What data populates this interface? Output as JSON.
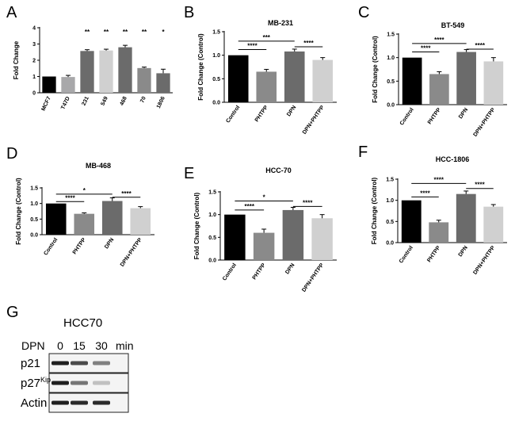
{
  "colors": {
    "black": "#000000",
    "dark_gray": "#6b6b6b",
    "mid_gray": "#8a8a8a",
    "light_gray": "#a8a8aa",
    "pale_gray": "#d0d0d0"
  },
  "chart_data": [
    {
      "letter": "A",
      "type": "bar",
      "title": "",
      "ylabel": "Fold Change",
      "ylim": [
        0,
        4
      ],
      "yticks": [
        "0",
        "1",
        "2",
        "3",
        "4"
      ],
      "categories": [
        "MCF7",
        "T47D",
        "231",
        "549",
        "468",
        "70",
        "1806"
      ],
      "values": [
        1.0,
        0.97,
        2.57,
        2.6,
        2.8,
        1.52,
        1.2
      ],
      "errors": [
        0,
        0.1,
        0.08,
        0.08,
        0.12,
        0.06,
        0.25
      ],
      "bar_colors": [
        "#000000",
        "#a8a8aa",
        "#6b6b6b",
        "#d0d0d0",
        "#6b6b6b",
        "#8a8a8a",
        "#6b6b6b"
      ],
      "markers": [
        "",
        "",
        "**",
        "**",
        "**",
        "**",
        "*"
      ],
      "comparisons": []
    },
    {
      "letter": "B",
      "type": "bar",
      "title": "MB-231",
      "ylabel": "Fold  Change (Control)",
      "ylim": [
        0,
        1.5
      ],
      "yticks": [
        "0.0",
        "0.5",
        "1.0",
        "1.5"
      ],
      "categories": [
        "Control",
        "PHTPP",
        "DPN",
        "DPN+PHTPP"
      ],
      "values": [
        1.0,
        0.65,
        1.08,
        0.9
      ],
      "errors": [
        0,
        0.05,
        0.05,
        0.05
      ],
      "bar_colors": [
        "#000000",
        "#8a8a8a",
        "#6b6b6b",
        "#d0d0d0"
      ],
      "comparisons": [
        {
          "from": 0,
          "to": 1,
          "label": "****",
          "level": 1.12
        },
        {
          "from": 0,
          "to": 2,
          "label": "***",
          "level": 1.3
        },
        {
          "from": 2,
          "to": 3,
          "label": "****",
          "level": 1.18
        }
      ]
    },
    {
      "letter": "C",
      "type": "bar",
      "title": "BT-549",
      "ylabel": "Fold  Change (Control)",
      "ylim": [
        0,
        1.5
      ],
      "yticks": [
        "0.0",
        "0.5",
        "1.0",
        "1.5"
      ],
      "categories": [
        "Control",
        "PHTPP",
        "DPN",
        "DPN+PHTPP"
      ],
      "values": [
        1.0,
        0.65,
        1.12,
        0.92
      ],
      "errors": [
        0,
        0.05,
        0.05,
        0.08
      ],
      "bar_colors": [
        "#000000",
        "#8a8a8a",
        "#6b6b6b",
        "#d0d0d0"
      ],
      "comparisons": [
        {
          "from": 0,
          "to": 1,
          "label": "****",
          "level": 1.12
        },
        {
          "from": 0,
          "to": 2,
          "label": "****",
          "level": 1.3
        },
        {
          "from": 2,
          "to": 3,
          "label": "****",
          "level": 1.18
        }
      ]
    },
    {
      "letter": "D",
      "type": "bar",
      "title": "MB-468",
      "ylabel": "Fold  Change (Control)",
      "ylim": [
        0,
        1.5
      ],
      "yticks": [
        "0.0",
        "0.5",
        "1.0",
        "1.5"
      ],
      "categories": [
        "Control",
        "PHTPP",
        "DPN",
        "DPN+PHTPP"
      ],
      "values": [
        1.0,
        0.67,
        1.08,
        0.85
      ],
      "errors": [
        0,
        0.03,
        0.1,
        0.05
      ],
      "bar_colors": [
        "#000000",
        "#8a8a8a",
        "#6b6b6b",
        "#d0d0d0"
      ],
      "comparisons": [
        {
          "from": 0,
          "to": 1,
          "label": "****",
          "level": 1.06
        },
        {
          "from": 0,
          "to": 2,
          "label": "*",
          "level": 1.3
        },
        {
          "from": 2,
          "to": 3,
          "label": "****",
          "level": 1.2
        }
      ]
    },
    {
      "letter": "E",
      "type": "bar",
      "title": "HCC-70",
      "ylabel": "Fold  Change (Control)",
      "ylim": [
        0,
        1.5
      ],
      "yticks": [
        "0.0",
        "0.5",
        "1.0",
        "1.5"
      ],
      "categories": [
        "Control",
        "PHTPP",
        "DPN",
        "DPN+PHTPP"
      ],
      "values": [
        1.0,
        0.6,
        1.1,
        0.92
      ],
      "errors": [
        0,
        0.08,
        0.06,
        0.08
      ],
      "bar_colors": [
        "#000000",
        "#8a8a8a",
        "#6b6b6b",
        "#d0d0d0"
      ],
      "comparisons": [
        {
          "from": 0,
          "to": 1,
          "label": "****",
          "level": 1.1
        },
        {
          "from": 0,
          "to": 2,
          "label": "*",
          "level": 1.3
        },
        {
          "from": 2,
          "to": 3,
          "label": "****",
          "level": 1.18
        }
      ]
    },
    {
      "letter": "F",
      "type": "bar",
      "title": "HCC-1806",
      "ylabel": "Fold  Change (Control)",
      "ylim": [
        0,
        1.5
      ],
      "yticks": [
        "0.0",
        "0.5",
        "1.0",
        "1.5"
      ],
      "categories": [
        "Control",
        "PHTPP",
        "DPN",
        "DPN+PHTPP"
      ],
      "values": [
        1.0,
        0.48,
        1.15,
        0.85
      ],
      "errors": [
        0,
        0.05,
        0.07,
        0.05
      ],
      "bar_colors": [
        "#000000",
        "#8a8a8a",
        "#6b6b6b",
        "#d0d0d0"
      ],
      "comparisons": [
        {
          "from": 0,
          "to": 1,
          "label": "****",
          "level": 1.08
        },
        {
          "from": 0,
          "to": 2,
          "label": "****",
          "level": 1.4
        },
        {
          "from": 2,
          "to": 3,
          "label": "****",
          "level": 1.28
        }
      ]
    }
  ],
  "blot": {
    "letter": "G",
    "title": "HCC70",
    "treatment": "DPN",
    "timepoints": [
      "0",
      "15",
      "30"
    ],
    "unit": "min",
    "rows": [
      {
        "name": "p21",
        "sup": "",
        "intensities": [
          0.95,
          0.75,
          0.5
        ]
      },
      {
        "name": "p27",
        "sup": "Kip",
        "intensities": [
          0.95,
          0.55,
          0.2
        ]
      },
      {
        "name": "Actin",
        "sup": "",
        "intensities": [
          0.95,
          0.9,
          0.9
        ]
      }
    ]
  }
}
